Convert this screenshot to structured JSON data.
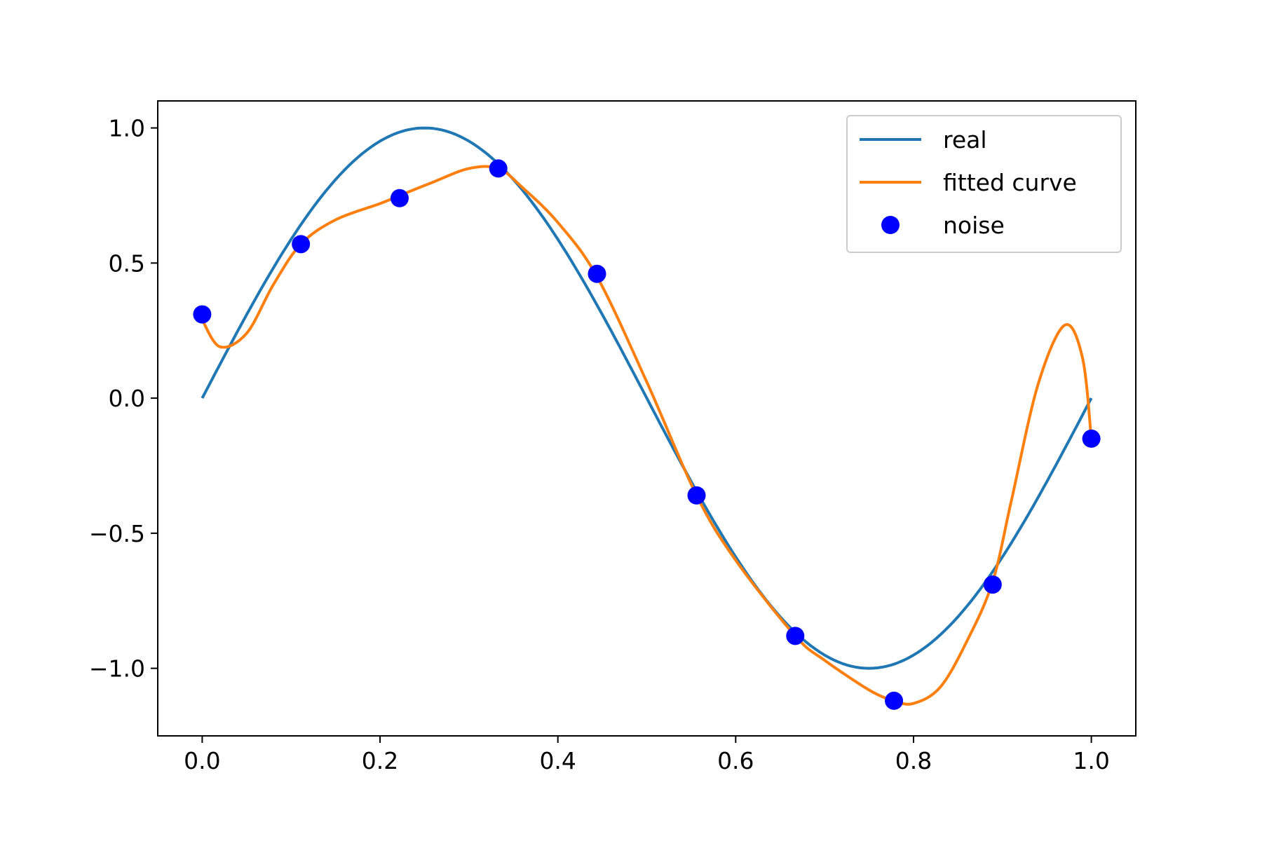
{
  "chart_data": {
    "type": "line",
    "title": "",
    "xlabel": "",
    "ylabel": "",
    "xlim": [
      -0.05,
      1.05
    ],
    "ylim": [
      -1.25,
      1.1
    ],
    "grid": false,
    "legend_position": "top-right",
    "x_ticks": [
      0.0,
      0.2,
      0.4,
      0.6,
      0.8,
      1.0
    ],
    "x_tick_labels": [
      "0.0",
      "0.2",
      "0.4",
      "0.6",
      "0.8",
      "1.0"
    ],
    "y_ticks": [
      1.0,
      0.5,
      0.0,
      -0.5,
      -1.0
    ],
    "y_tick_labels": [
      "1.0",
      "0.5",
      "0.0",
      "−0.5",
      "−1.0"
    ],
    "series": [
      {
        "name": "real",
        "kind": "line",
        "color": "#1f77b4",
        "function": "sin(2*pi*x)",
        "x_range": [
          0,
          1
        ]
      },
      {
        "name": "fitted curve",
        "kind": "line",
        "color": "#ff7f0e",
        "x": [
          0.0,
          0.02,
          0.05,
          0.08,
          0.111,
          0.15,
          0.2,
          0.222,
          0.26,
          0.3,
          0.333,
          0.36,
          0.4,
          0.444,
          0.5,
          0.556,
          0.6,
          0.667,
          0.7,
          0.75,
          0.778,
          0.8,
          0.83,
          0.86,
          0.889,
          0.91,
          0.94,
          0.97,
          0.99,
          1.0
        ],
        "y": [
          0.29,
          0.19,
          0.24,
          0.42,
          0.57,
          0.66,
          0.72,
          0.75,
          0.8,
          0.85,
          0.85,
          0.78,
          0.65,
          0.45,
          0.06,
          -0.36,
          -0.6,
          -0.88,
          -0.97,
          -1.08,
          -1.12,
          -1.13,
          -1.07,
          -0.9,
          -0.68,
          -0.38,
          0.05,
          0.27,
          0.15,
          -0.15
        ]
      },
      {
        "name": "noise",
        "kind": "scatter",
        "color": "#0000ff",
        "x": [
          0.0,
          0.111,
          0.222,
          0.333,
          0.444,
          0.556,
          0.667,
          0.778,
          0.889,
          1.0
        ],
        "y": [
          0.31,
          0.57,
          0.74,
          0.85,
          0.46,
          -0.36,
          -0.88,
          -1.12,
          -0.69,
          -0.15
        ]
      }
    ]
  }
}
